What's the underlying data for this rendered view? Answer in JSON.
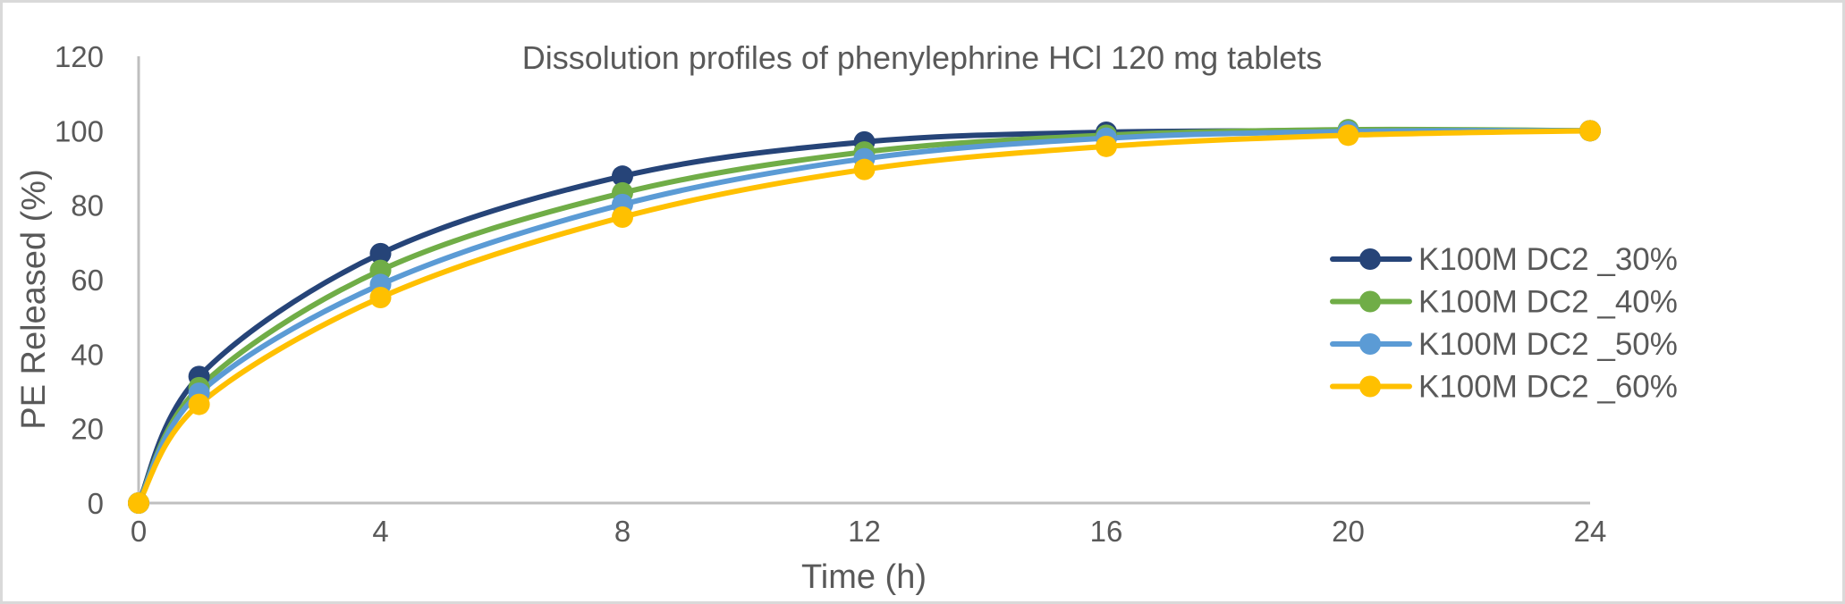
{
  "chart_data": {
    "type": "line",
    "title": "Dissolution profiles of phenylephrine HCl 120 mg tablets",
    "xlabel": "Time (h)",
    "ylabel": "PE Released (%)",
    "x": [
      0,
      1,
      4,
      8,
      12,
      16,
      20,
      24
    ],
    "xticks": [
      0,
      4,
      8,
      12,
      16,
      20,
      24
    ],
    "yticks": [
      0,
      20,
      40,
      60,
      80,
      100,
      120
    ],
    "xlim": [
      0,
      24
    ],
    "ylim": [
      0,
      120
    ],
    "grid": false,
    "smooth": true,
    "legend_position": "right",
    "series": [
      {
        "name": "K100M DC2 _30%",
        "color": "#264478",
        "values": [
          0,
          34,
          67,
          87.8,
          97,
          99.6,
          100,
          100
        ]
      },
      {
        "name": "K100M DC2 _40%",
        "color": "#70ad47",
        "values": [
          0,
          31,
          62.5,
          83.3,
          94.3,
          98.8,
          100.3,
          100
        ]
      },
      {
        "name": "K100M DC2 _50%",
        "color": "#5b9bd5",
        "values": [
          0,
          29.5,
          58.7,
          80.2,
          92.5,
          98,
          99.8,
          100
        ]
      },
      {
        "name": "K100M DC2 _60%",
        "color": "#ffc000",
        "values": [
          0,
          26.5,
          55.2,
          76.8,
          89.6,
          95.8,
          98.8,
          100
        ]
      }
    ]
  }
}
